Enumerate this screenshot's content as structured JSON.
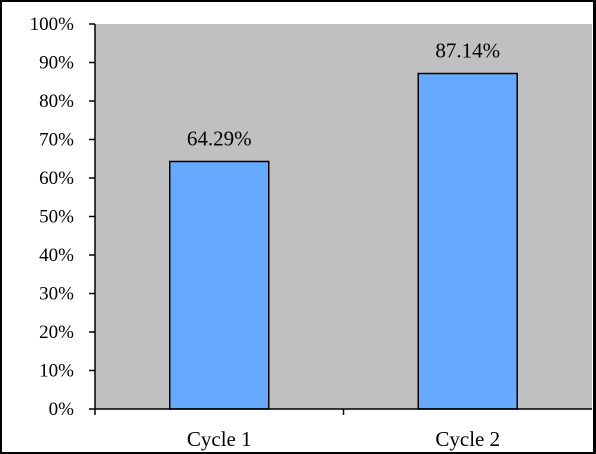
{
  "chart_data": {
    "type": "bar",
    "title": "",
    "xlabel": "",
    "ylabel": "",
    "categories": [
      "Cycle 1",
      "Cycle 2"
    ],
    "values": [
      64.29,
      87.14
    ],
    "data_labels": [
      "64.29%",
      "87.14%"
    ],
    "yticks": [
      "0%",
      "10%",
      "20%",
      "30%",
      "40%",
      "50%",
      "60%",
      "70%",
      "80%",
      "90%",
      "100%"
    ],
    "ylim": [
      0,
      100
    ],
    "grid": false,
    "legend": "none",
    "colors": {
      "plot_background": "#c0c0c0",
      "bar_fill": "#66aaff",
      "bar_stroke": "#000000"
    }
  }
}
